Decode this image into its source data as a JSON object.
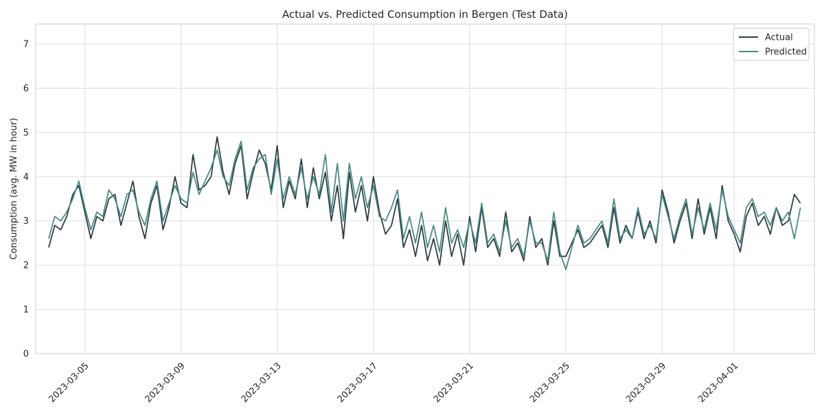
{
  "chart_data": {
    "type": "line",
    "title": "Actual vs. Predicted Consumption in Bergen (Test Data)",
    "xlabel": "",
    "ylabel": "Consumption (avg. MW in hour)",
    "xlim": [
      "2023-03-02T23:00",
      "2023-04-04T08:00"
    ],
    "ylim": [
      0,
      7.45
    ],
    "y_ticks": [
      0,
      1,
      2,
      3,
      4,
      5,
      6,
      7
    ],
    "x_ticks": [
      "2023-03-05",
      "2023-03-09",
      "2023-03-13",
      "2023-03-17",
      "2023-03-21",
      "2023-03-25",
      "2023-03-29",
      "2023-04-01"
    ],
    "grid": true,
    "legend_position": "top-right",
    "series_colors": {
      "Actual": "#2c3e45",
      "Predicted": "#4a8a84"
    },
    "series": [
      {
        "name": "Actual",
        "x": [
          "2023-03-03T12:00",
          "2023-03-03T18:00",
          "2023-03-04T00:00",
          "2023-03-04T06:00",
          "2023-03-04T12:00",
          "2023-03-04T18:00",
          "2023-03-05T00:00",
          "2023-03-05T06:00",
          "2023-03-05T12:00",
          "2023-03-05T18:00",
          "2023-03-06T00:00",
          "2023-03-06T06:00",
          "2023-03-06T12:00",
          "2023-03-06T18:00",
          "2023-03-07T00:00",
          "2023-03-07T06:00",
          "2023-03-07T12:00",
          "2023-03-07T18:00",
          "2023-03-08T00:00",
          "2023-03-08T06:00",
          "2023-03-08T12:00",
          "2023-03-08T18:00",
          "2023-03-09T00:00",
          "2023-03-09T06:00",
          "2023-03-09T12:00",
          "2023-03-09T18:00",
          "2023-03-10T00:00",
          "2023-03-10T06:00",
          "2023-03-10T12:00",
          "2023-03-10T18:00",
          "2023-03-11T00:00",
          "2023-03-11T06:00",
          "2023-03-11T12:00",
          "2023-03-11T18:00",
          "2023-03-12T00:00",
          "2023-03-12T06:00",
          "2023-03-12T12:00",
          "2023-03-12T18:00",
          "2023-03-13T00:00",
          "2023-03-13T06:00",
          "2023-03-13T12:00",
          "2023-03-13T18:00",
          "2023-03-14T00:00",
          "2023-03-14T06:00",
          "2023-03-14T12:00",
          "2023-03-14T18:00",
          "2023-03-15T00:00",
          "2023-03-15T06:00",
          "2023-03-15T12:00",
          "2023-03-15T18:00",
          "2023-03-16T00:00",
          "2023-03-16T06:00",
          "2023-03-16T12:00",
          "2023-03-16T18:00",
          "2023-03-17T00:00",
          "2023-03-17T06:00",
          "2023-03-17T12:00",
          "2023-03-17T18:00",
          "2023-03-18T00:00",
          "2023-03-18T06:00",
          "2023-03-18T12:00",
          "2023-03-18T18:00",
          "2023-03-19T00:00",
          "2023-03-19T06:00",
          "2023-03-19T12:00",
          "2023-03-19T18:00",
          "2023-03-20T00:00",
          "2023-03-20T06:00",
          "2023-03-20T12:00",
          "2023-03-20T18:00",
          "2023-03-21T00:00",
          "2023-03-21T06:00",
          "2023-03-21T12:00",
          "2023-03-21T18:00",
          "2023-03-22T00:00",
          "2023-03-22T06:00",
          "2023-03-22T12:00",
          "2023-03-22T18:00",
          "2023-03-23T00:00",
          "2023-03-23T06:00",
          "2023-03-23T12:00",
          "2023-03-23T18:00",
          "2023-03-24T00:00",
          "2023-03-24T06:00",
          "2023-03-24T12:00",
          "2023-03-24T18:00",
          "2023-03-25T00:00",
          "2023-03-25T06:00",
          "2023-03-25T12:00",
          "2023-03-25T18:00",
          "2023-03-26T00:00",
          "2023-03-26T06:00",
          "2023-03-26T12:00",
          "2023-03-26T18:00",
          "2023-03-27T00:00",
          "2023-03-27T06:00",
          "2023-03-27T12:00",
          "2023-03-27T18:00",
          "2023-03-28T00:00",
          "2023-03-28T06:00",
          "2023-03-28T12:00",
          "2023-03-28T18:00",
          "2023-03-29T00:00",
          "2023-03-29T06:00",
          "2023-03-29T12:00",
          "2023-03-29T18:00",
          "2023-03-30T00:00",
          "2023-03-30T06:00",
          "2023-03-30T12:00",
          "2023-03-30T18:00",
          "2023-03-31T00:00",
          "2023-03-31T06:00",
          "2023-03-31T12:00",
          "2023-03-31T18:00",
          "2023-04-01T00:00",
          "2023-04-01T06:00",
          "2023-04-01T12:00",
          "2023-04-01T18:00",
          "2023-04-02T00:00",
          "2023-04-02T06:00",
          "2023-04-02T12:00",
          "2023-04-02T18:00",
          "2023-04-03T00:00",
          "2023-04-03T06:00",
          "2023-04-03T12:00",
          "2023-04-03T18:00"
        ],
        "values": [
          2.4,
          2.9,
          2.8,
          3.1,
          3.6,
          3.8,
          3.2,
          2.6,
          3.1,
          3.0,
          3.5,
          3.6,
          2.9,
          3.4,
          3.9,
          3.1,
          2.6,
          3.4,
          3.8,
          2.8,
          3.3,
          4.0,
          3.4,
          3.3,
          4.5,
          3.7,
          3.8,
          4.0,
          4.9,
          4.1,
          3.6,
          4.3,
          4.7,
          3.5,
          4.1,
          4.6,
          4.3,
          3.7,
          4.7,
          3.3,
          3.9,
          3.5,
          4.4,
          3.3,
          4.2,
          3.5,
          4.1,
          3.0,
          3.8,
          2.6,
          4.1,
          3.2,
          3.8,
          3.0,
          4.0,
          3.2,
          2.7,
          2.9,
          3.5,
          2.4,
          2.8,
          2.2,
          2.9,
          2.1,
          2.6,
          2.0,
          3.0,
          2.2,
          2.7,
          2.0,
          3.1,
          2.3,
          3.3,
          2.4,
          2.6,
          2.2,
          3.2,
          2.3,
          2.5,
          2.1,
          3.1,
          2.4,
          2.6,
          2.0,
          3.0,
          2.2,
          2.2,
          2.5,
          2.8,
          2.4,
          2.5,
          2.7,
          2.9,
          2.4,
          3.3,
          2.5,
          2.9,
          2.6,
          3.2,
          2.6,
          3.0,
          2.5,
          3.7,
          3.2,
          2.5,
          3.0,
          3.4,
          2.6,
          3.5,
          2.7,
          3.3,
          2.6,
          3.8,
          3.0,
          2.7,
          2.3,
          3.1,
          3.4,
          2.9,
          3.1,
          2.7,
          3.3,
          2.9,
          3.0,
          3.6,
          3.4
        ]
      },
      {
        "name": "Predicted",
        "x": [
          "2023-03-03T12:00",
          "2023-03-03T18:00",
          "2023-03-04T00:00",
          "2023-03-04T06:00",
          "2023-03-04T12:00",
          "2023-03-04T18:00",
          "2023-03-05T00:00",
          "2023-03-05T06:00",
          "2023-03-05T12:00",
          "2023-03-05T18:00",
          "2023-03-06T00:00",
          "2023-03-06T06:00",
          "2023-03-06T12:00",
          "2023-03-06T18:00",
          "2023-03-07T00:00",
          "2023-03-07T06:00",
          "2023-03-07T12:00",
          "2023-03-07T18:00",
          "2023-03-08T00:00",
          "2023-03-08T06:00",
          "2023-03-08T12:00",
          "2023-03-08T18:00",
          "2023-03-09T00:00",
          "2023-03-09T06:00",
          "2023-03-09T12:00",
          "2023-03-09T18:00",
          "2023-03-10T00:00",
          "2023-03-10T06:00",
          "2023-03-10T12:00",
          "2023-03-10T18:00",
          "2023-03-11T00:00",
          "2023-03-11T06:00",
          "2023-03-11T12:00",
          "2023-03-11T18:00",
          "2023-03-12T00:00",
          "2023-03-12T06:00",
          "2023-03-12T12:00",
          "2023-03-12T18:00",
          "2023-03-13T00:00",
          "2023-03-13T06:00",
          "2023-03-13T12:00",
          "2023-03-13T18:00",
          "2023-03-14T00:00",
          "2023-03-14T06:00",
          "2023-03-14T12:00",
          "2023-03-14T18:00",
          "2023-03-15T00:00",
          "2023-03-15T06:00",
          "2023-03-15T12:00",
          "2023-03-15T18:00",
          "2023-03-16T00:00",
          "2023-03-16T06:00",
          "2023-03-16T12:00",
          "2023-03-16T18:00",
          "2023-03-17T00:00",
          "2023-03-17T06:00",
          "2023-03-17T12:00",
          "2023-03-17T18:00",
          "2023-03-18T00:00",
          "2023-03-18T06:00",
          "2023-03-18T12:00",
          "2023-03-18T18:00",
          "2023-03-19T00:00",
          "2023-03-19T06:00",
          "2023-03-19T12:00",
          "2023-03-19T18:00",
          "2023-03-20T00:00",
          "2023-03-20T06:00",
          "2023-03-20T12:00",
          "2023-03-20T18:00",
          "2023-03-21T00:00",
          "2023-03-21T06:00",
          "2023-03-21T12:00",
          "2023-03-21T18:00",
          "2023-03-22T00:00",
          "2023-03-22T06:00",
          "2023-03-22T12:00",
          "2023-03-22T18:00",
          "2023-03-23T00:00",
          "2023-03-23T06:00",
          "2023-03-23T12:00",
          "2023-03-23T18:00",
          "2023-03-24T00:00",
          "2023-03-24T06:00",
          "2023-03-24T12:00",
          "2023-03-24T18:00",
          "2023-03-25T00:00",
          "2023-03-25T06:00",
          "2023-03-25T12:00",
          "2023-03-25T18:00",
          "2023-03-26T00:00",
          "2023-03-26T06:00",
          "2023-03-26T12:00",
          "2023-03-26T18:00",
          "2023-03-27T00:00",
          "2023-03-27T06:00",
          "2023-03-27T12:00",
          "2023-03-27T18:00",
          "2023-03-28T00:00",
          "2023-03-28T06:00",
          "2023-03-28T12:00",
          "2023-03-28T18:00",
          "2023-03-29T00:00",
          "2023-03-29T06:00",
          "2023-03-29T12:00",
          "2023-03-29T18:00",
          "2023-03-30T00:00",
          "2023-03-30T06:00",
          "2023-03-30T12:00",
          "2023-03-30T18:00",
          "2023-03-31T00:00",
          "2023-03-31T06:00",
          "2023-03-31T12:00",
          "2023-03-31T18:00",
          "2023-04-01T00:00",
          "2023-04-01T06:00",
          "2023-04-01T12:00",
          "2023-04-01T18:00",
          "2023-04-02T00:00",
          "2023-04-02T06:00",
          "2023-04-02T12:00",
          "2023-04-02T18:00",
          "2023-04-03T00:00",
          "2023-04-03T06:00",
          "2023-04-03T12:00",
          "2023-04-03T18:00"
        ],
        "values": [
          2.6,
          3.1,
          3.0,
          3.2,
          3.5,
          3.9,
          3.3,
          2.8,
          3.2,
          3.1,
          3.7,
          3.5,
          3.1,
          3.6,
          3.7,
          3.2,
          2.9,
          3.5,
          3.9,
          3.0,
          3.4,
          3.8,
          3.5,
          3.4,
          4.1,
          3.6,
          3.9,
          4.2,
          4.6,
          4.0,
          3.8,
          4.4,
          4.8,
          3.7,
          4.2,
          4.4,
          4.5,
          3.6,
          4.4,
          3.5,
          4.0,
          3.6,
          4.2,
          3.5,
          4.0,
          3.6,
          4.5,
          3.2,
          4.3,
          3.0,
          4.3,
          3.5,
          4.0,
          3.3,
          3.8,
          3.1,
          3.0,
          3.3,
          3.7,
          2.6,
          3.1,
          2.5,
          3.2,
          2.4,
          2.9,
          2.3,
          3.3,
          2.5,
          2.8,
          2.4,
          3.0,
          2.5,
          3.4,
          2.5,
          2.7,
          2.3,
          3.0,
          2.4,
          2.6,
          2.2,
          3.0,
          2.5,
          2.5,
          2.1,
          3.2,
          2.3,
          1.9,
          2.4,
          2.9,
          2.5,
          2.6,
          2.8,
          3.0,
          2.5,
          3.5,
          2.6,
          2.8,
          2.6,
          3.3,
          2.7,
          2.9,
          2.6,
          3.6,
          3.1,
          2.6,
          3.1,
          3.5,
          2.7,
          3.3,
          2.8,
          3.4,
          2.8,
          3.7,
          3.1,
          2.8,
          2.5,
          3.3,
          3.5,
          3.1,
          3.2,
          2.9,
          3.3,
          3.0,
          3.2,
          2.6,
          3.3
        ]
      }
    ]
  }
}
